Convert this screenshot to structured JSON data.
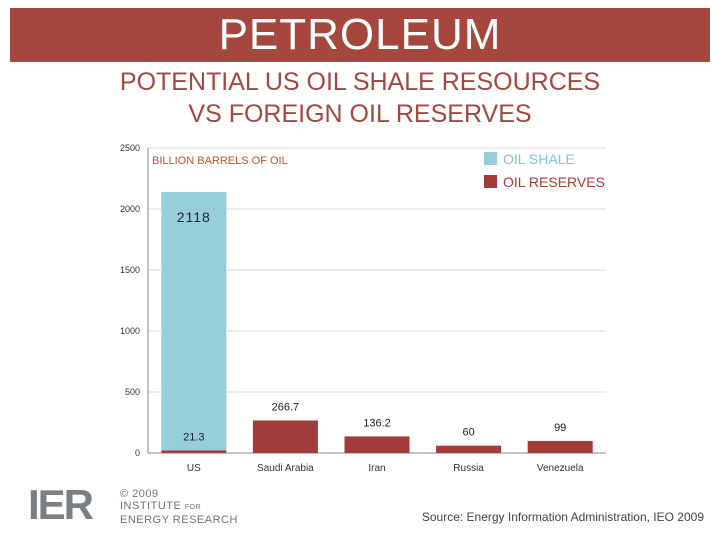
{
  "header": {
    "banner": "PETROLEUM",
    "subtitle_line1": "POTENTIAL US OIL SHALE RESOURCES",
    "subtitle_line2": "VS FOREIGN OIL RESERVES"
  },
  "colors": {
    "accent": "#a5473f",
    "oil_shale": "#97cedb",
    "oil_reserves": "#a23b3b",
    "grid": "#d9d9d9"
  },
  "chart_data": {
    "type": "bar",
    "stacked": true,
    "unit_label": "BILLION BARRELS OF OIL",
    "categories": [
      "US",
      "Saudi Arabia",
      "Iran",
      "Russia",
      "Venezuela"
    ],
    "series": [
      {
        "name": "OIL SHALE",
        "values": [
          2118,
          0,
          0,
          0,
          0
        ],
        "labels": [
          "2118",
          "",
          "",
          "",
          ""
        ]
      },
      {
        "name": "OIL RESERVES",
        "values": [
          21.3,
          266.7,
          136.2,
          60,
          99
        ],
        "labels": [
          "21.3",
          "266.7",
          "136.2",
          "60",
          "99"
        ]
      }
    ],
    "ylim": [
      0,
      2500
    ],
    "yticks": [
      0,
      500,
      1000,
      1500,
      2000,
      2500
    ],
    "grid": true,
    "legend_position": "top-right"
  },
  "footer": {
    "logo_mark": "IER",
    "copyright": "© 2009",
    "org_line1": "INSTITUTE",
    "org_for": "FOR",
    "org_line2": "ENERGY RESEARCH",
    "source": "Source: Energy Information Administration, IEO 2009"
  }
}
